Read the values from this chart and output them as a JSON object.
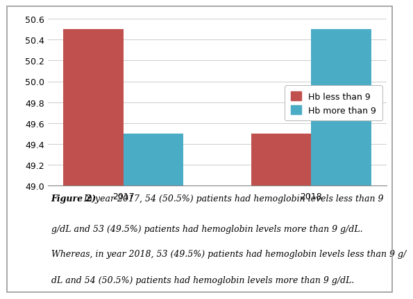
{
  "years": [
    "2017",
    "2018"
  ],
  "hb_less_than_9": [
    50.5,
    49.5
  ],
  "hb_more_than_9": [
    49.5,
    50.5
  ],
  "bar_color_less": "#c0504d",
  "bar_color_more": "#4bacc6",
  "legend_labels": [
    "Hb less than 9",
    "Hb more than 9"
  ],
  "ylim": [
    49.0,
    50.65
  ],
  "yticks": [
    49.0,
    49.2,
    49.4,
    49.6,
    49.8,
    50.0,
    50.2,
    50.4,
    50.6
  ],
  "bar_width": 0.32,
  "caption_bold": "Figure 2)  ",
  "caption_line1": "In year 2017, 54 (50.5%) patients had hemoglobin levels less than 9",
  "caption_line2": "g/dL and 53 (49.5%) patients had hemoglobin levels more than 9 g/dL.",
  "caption_line3": "Whereas, in year 2018, 53 (49.5%) patients had hemoglobin levels less than 9 g/",
  "caption_line4": "dL and 54 (50.5%) patients had hemoglobin levels more than 9 g/dL.",
  "background_color": "#ffffff",
  "grid_color": "#cccccc",
  "border_color": "#999999",
  "tick_fontsize": 9,
  "legend_fontsize": 9,
  "caption_fontsize": 9
}
